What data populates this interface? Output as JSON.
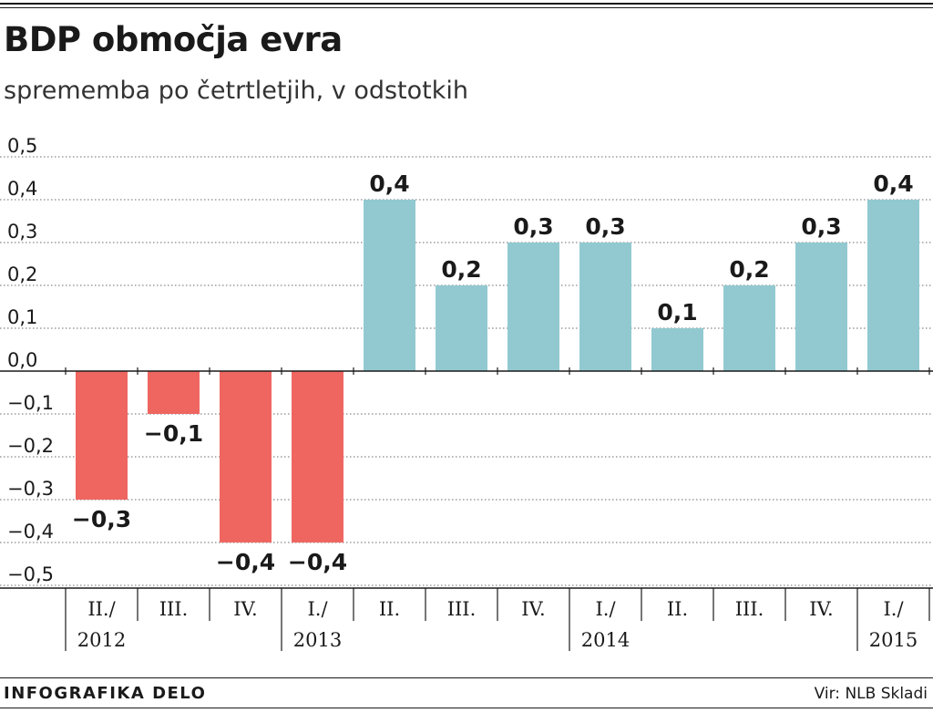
{
  "chart_data": {
    "type": "bar",
    "title": "BDP območja evra",
    "subtitle": "sprememba po četrtletjih, v odstotkih",
    "categories": [
      "II./2012",
      "III.",
      "IV.",
      "I./2013",
      "II.",
      "III.",
      "IV.",
      "I./2014",
      "II.",
      "III.",
      "IV.",
      "I./2015"
    ],
    "category_lines": [
      [
        "II./",
        "2012"
      ],
      [
        "III."
      ],
      [
        "IV."
      ],
      [
        "I./",
        "2013"
      ],
      [
        "II."
      ],
      [
        "III."
      ],
      [
        "IV."
      ],
      [
        "I./",
        "2014"
      ],
      [
        "II."
      ],
      [
        "III."
      ],
      [
        "IV."
      ],
      [
        "I./",
        "2015"
      ]
    ],
    "values": [
      -0.3,
      -0.1,
      -0.4,
      -0.4,
      0.4,
      0.2,
      0.3,
      0.3,
      0.1,
      0.2,
      0.3,
      0.4
    ],
    "value_labels": [
      "−0,3",
      "−0,1",
      "−0,4",
      "−0,4",
      "0,4",
      "0,2",
      "0,3",
      "0,3",
      "0,1",
      "0,2",
      "0,3",
      "0,4"
    ],
    "ylim": [
      -0.5,
      0.5
    ],
    "yticks": [
      0.5,
      0.4,
      0.3,
      0.2,
      0.1,
      0.0,
      -0.1,
      -0.2,
      -0.3,
      -0.4,
      -0.5
    ],
    "ytick_labels": [
      "0,5",
      "0,4",
      "0,3",
      "0,2",
      "0,1",
      "0,0",
      "−0,1",
      "−0,2",
      "−0,3",
      "−0,4",
      "−0,5"
    ],
    "year_separators_before": [
      3,
      7,
      11
    ],
    "colors": {
      "negative": "#ef6661",
      "positive": "#92c9d0",
      "grid": "#6b6b6b",
      "axis": "#1a1a1a"
    },
    "xlabel": "",
    "ylabel": "",
    "grid": true
  },
  "footer": {
    "credit": "INFOGRAFIKA DELO",
    "source": "Vir: NLB Skladi"
  }
}
